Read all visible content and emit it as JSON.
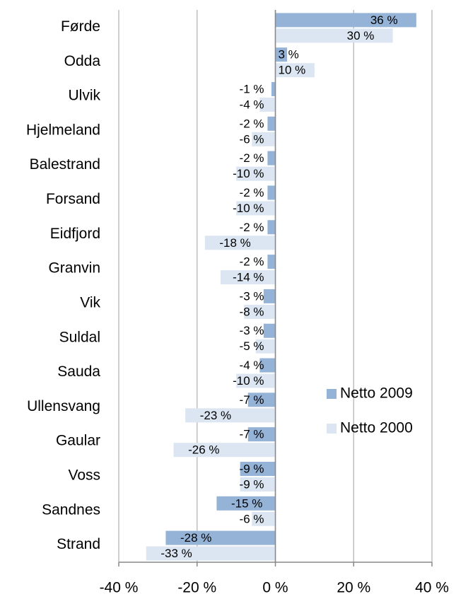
{
  "chart_data": {
    "type": "bar",
    "orientation": "horizontal",
    "categories": [
      "Førde",
      "Odda",
      "Ulvik",
      "Hjelmeland",
      "Balestrand",
      "Forsand",
      "Eidfjord",
      "Granvin",
      "Vik",
      "Suldal",
      "Sauda",
      "Ullensvang",
      "Gaular",
      "Voss",
      "Sandnes",
      "Strand"
    ],
    "series": [
      {
        "name": "Netto 2009",
        "color": "#95b3d7",
        "values": [
          36,
          3,
          -1,
          -2,
          -2,
          -2,
          -2,
          -2,
          -3,
          -3,
          -4,
          -7,
          -7,
          -9,
          -15,
          -28
        ],
        "value_labels": [
          "36 %",
          "3 %",
          "-1 %",
          "-2 %",
          "-2 %",
          "-2 %",
          "-2 %",
          "-2 %",
          "-3 %",
          "-3 %",
          "-4 %",
          "-7 %",
          "-7 %",
          "-9 %",
          "-15 %",
          "-28 %"
        ]
      },
      {
        "name": "Netto 2000",
        "color": "#dce6f2",
        "values": [
          30,
          10,
          -4,
          -6,
          -10,
          -10,
          -18,
          -14,
          -8,
          -5,
          -10,
          -23,
          -26,
          -9,
          -6,
          -33
        ],
        "value_labels": [
          "30 %",
          "10 %",
          "-4 %",
          "-6 %",
          "-10 %",
          "-10 %",
          "-18 %",
          "-14 %",
          "-8 %",
          "-5 %",
          "-10 %",
          "-23 %",
          "-26 %",
          "-9 %",
          "-6 %",
          "-33 %"
        ]
      }
    ],
    "xlim": [
      -40,
      40
    ],
    "xticks": [
      {
        "value": -40,
        "label": "-40 %"
      },
      {
        "value": -20,
        "label": "-20 %"
      },
      {
        "value": 0,
        "label": "0 %"
      },
      {
        "value": 20,
        "label": "20 %"
      },
      {
        "value": 40,
        "label": "40 %"
      }
    ],
    "grid": true,
    "legend": "right"
  }
}
